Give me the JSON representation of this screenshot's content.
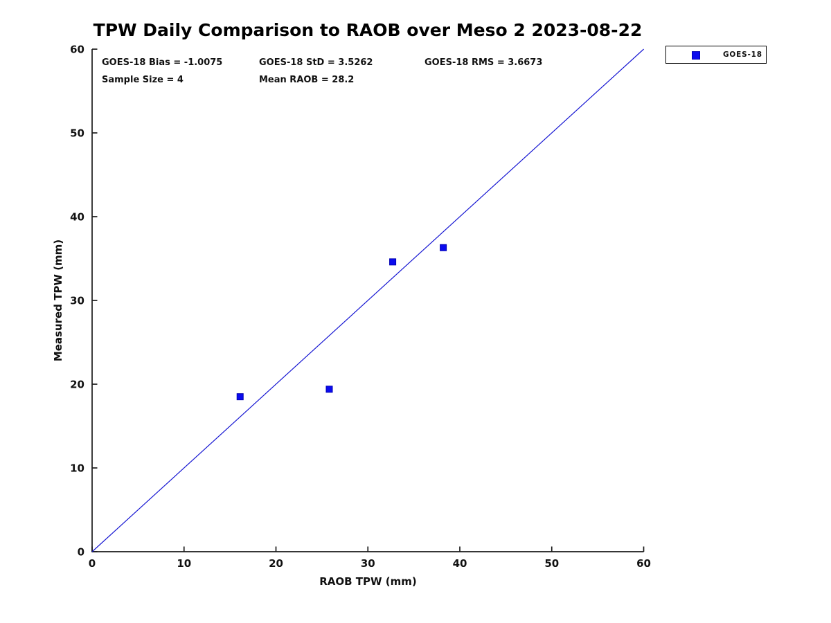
{
  "colors": {
    "series_blue": "#0b0bee",
    "series_edge": "#0000b4",
    "line_blue": "#1515d2",
    "axis": "#1a1a1a",
    "text": "#111111"
  },
  "legend": {
    "label": "GOES-18"
  },
  "chart_data": {
    "type": "scatter",
    "title": "TPW Daily Comparison to RAOB over Meso 2 2023-08-22",
    "xlabel": "RAOB TPW (mm)",
    "ylabel": "Measured TPW (mm)",
    "xlim": [
      0,
      60
    ],
    "ylim": [
      0,
      60
    ],
    "xticks": [
      0,
      10,
      20,
      30,
      40,
      50,
      60
    ],
    "yticks": [
      0,
      10,
      20,
      30,
      40,
      50,
      60
    ],
    "grid": false,
    "legend_position": "top-right-outside",
    "series": [
      {
        "name": "GOES-18",
        "marker": "square",
        "color": "#0b0bee",
        "points": [
          [
            16.1,
            18.5
          ],
          [
            25.8,
            19.4
          ],
          [
            32.7,
            34.6
          ],
          [
            38.2,
            36.3
          ]
        ]
      }
    ],
    "reference_line": {
      "note": "1:1 line",
      "x": [
        0,
        60
      ],
      "y": [
        0,
        60
      ],
      "color": "#1515d2"
    },
    "annotations": {
      "row1": [
        "GOES-18 Bias = -1.0075",
        "GOES-18 StD = 3.5262",
        "GOES-18 RMS = 3.6673"
      ],
      "row2": [
        "Sample Size = 4",
        "Mean RAOB = 28.2"
      ]
    }
  }
}
